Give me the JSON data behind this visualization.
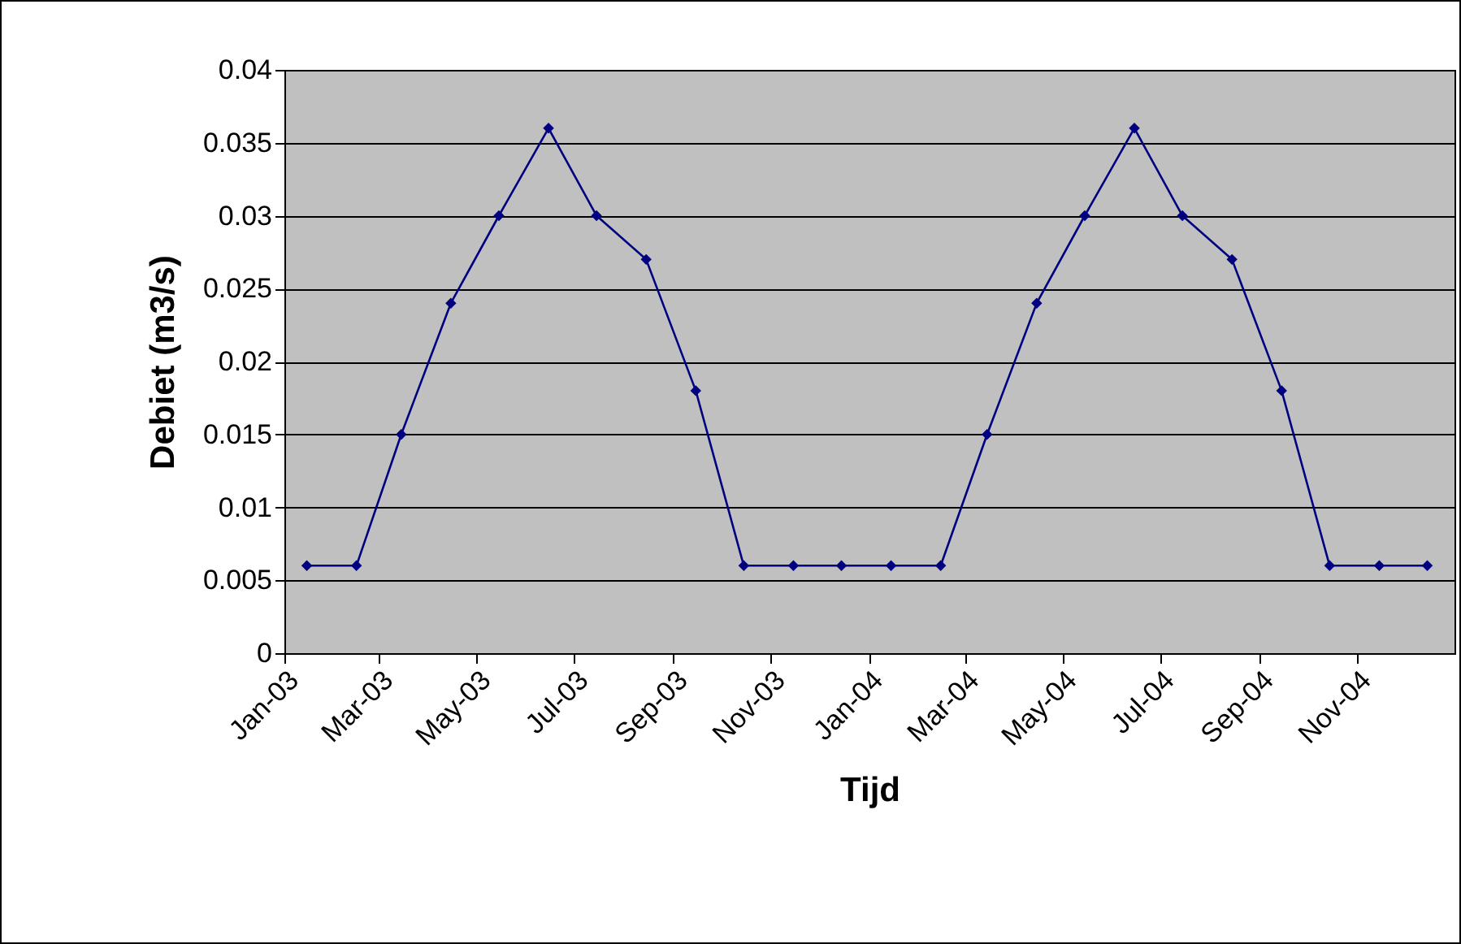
{
  "chart_data": {
    "type": "line",
    "xlabel": "Tijd",
    "ylabel": "Debiet (m3/s)",
    "x": [
      "2003-01-15",
      "2003-02-15",
      "2003-03-15",
      "2003-04-15",
      "2003-05-15",
      "2003-06-15",
      "2003-07-15",
      "2003-08-15",
      "2003-09-15",
      "2003-10-15",
      "2003-11-15",
      "2003-12-15",
      "2004-01-15",
      "2004-02-15",
      "2004-03-15",
      "2004-04-15",
      "2004-05-15",
      "2004-06-15",
      "2004-07-15",
      "2004-08-15",
      "2004-09-15",
      "2004-10-15",
      "2004-11-15",
      "2004-12-15"
    ],
    "series": [
      {
        "color": "#000080",
        "values": [
          0.006,
          0.006,
          0.015,
          0.024,
          0.03,
          0.036,
          0.03,
          0.027,
          0.018,
          0.006,
          0.006,
          0.006,
          0.006,
          0.006,
          0.015,
          0.024,
          0.03,
          0.036,
          0.03,
          0.027,
          0.018,
          0.006,
          0.006,
          0.006
        ]
      }
    ],
    "xlim": [
      "2003-01-01",
      "2005-01-01"
    ],
    "xticks": [
      {
        "value": "2003-01-01",
        "label": "Jan-03"
      },
      {
        "value": "2003-03-01",
        "label": "Mar-03"
      },
      {
        "value": "2003-05-01",
        "label": "May-03"
      },
      {
        "value": "2003-07-01",
        "label": "Jul-03"
      },
      {
        "value": "2003-09-01",
        "label": "Sep-03"
      },
      {
        "value": "2003-11-01",
        "label": "Nov-03"
      },
      {
        "value": "2004-01-01",
        "label": "Jan-04"
      },
      {
        "value": "2004-03-01",
        "label": "Mar-04"
      },
      {
        "value": "2004-05-01",
        "label": "May-04"
      },
      {
        "value": "2004-07-01",
        "label": "Jul-04"
      },
      {
        "value": "2004-09-01",
        "label": "Sep-04"
      },
      {
        "value": "2004-11-01",
        "label": "Nov-04"
      }
    ],
    "ylim": [
      0,
      0.04
    ],
    "yticks": [
      0,
      0.005,
      0.01,
      0.015,
      0.02,
      0.025,
      0.03,
      0.035,
      0.04
    ],
    "grid": "y",
    "marker": "diamond",
    "line_style": "solid",
    "legend": false
  }
}
